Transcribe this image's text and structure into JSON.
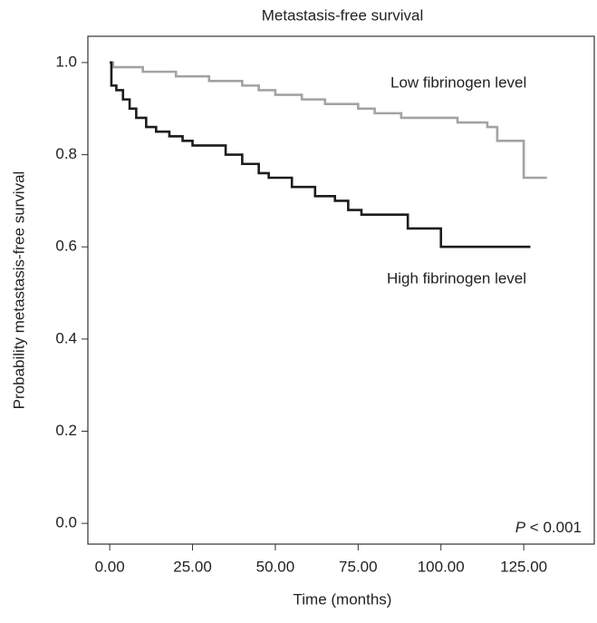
{
  "chart_data": {
    "type": "step",
    "title": "Metastasis-free survival",
    "x_label": "Time (months)",
    "y_label": "Probability metastasis-free survival",
    "xlim": [
      -6.6,
      146.3
    ],
    "ylim": [
      -0.045,
      1.057
    ],
    "xticks": [
      {
        "value": 0,
        "label": "0.00"
      },
      {
        "value": 25,
        "label": "25.00"
      },
      {
        "value": 50,
        "label": "50.00"
      },
      {
        "value": 75,
        "label": "75.00"
      },
      {
        "value": 100,
        "label": "100.00"
      },
      {
        "value": 125,
        "label": "125.00"
      }
    ],
    "yticks": [
      {
        "value": 0,
        "label": "0.0"
      },
      {
        "value": 0.2,
        "label": "0.2"
      },
      {
        "value": 0.4,
        "label": "0.4"
      },
      {
        "value": 0.6,
        "label": "0.6"
      },
      {
        "value": 0.8,
        "label": "0.8"
      },
      {
        "value": 1.0,
        "label": "1.0"
      }
    ],
    "grid": false,
    "series": [
      {
        "name": "Low fibrinogen level",
        "color": "#a3a3a3",
        "x": [
          0,
          1,
          10,
          20,
          30,
          40,
          45,
          50,
          58,
          65,
          75,
          80,
          88,
          105,
          114,
          117,
          125,
          132
        ],
        "values": [
          1.0,
          0.99,
          0.98,
          0.97,
          0.96,
          0.95,
          0.94,
          0.93,
          0.92,
          0.91,
          0.9,
          0.89,
          0.88,
          0.87,
          0.86,
          0.83,
          0.75,
          0.75
        ]
      },
      {
        "name": "High fibrinogen level",
        "color": "#1c1c1c",
        "x": [
          0,
          0.5,
          2,
          4,
          6,
          8,
          11,
          14,
          18,
          22,
          25,
          35,
          40,
          45,
          48,
          55,
          62,
          68,
          72,
          76,
          90,
          100,
          127
        ],
        "values": [
          1.0,
          0.95,
          0.94,
          0.92,
          0.9,
          0.88,
          0.86,
          0.85,
          0.84,
          0.83,
          0.82,
          0.8,
          0.78,
          0.76,
          0.75,
          0.73,
          0.71,
          0.7,
          0.68,
          0.67,
          0.64,
          0.6,
          0.6
        ]
      }
    ],
    "annotations": [
      "P",
      "< 0.001"
    ]
  }
}
